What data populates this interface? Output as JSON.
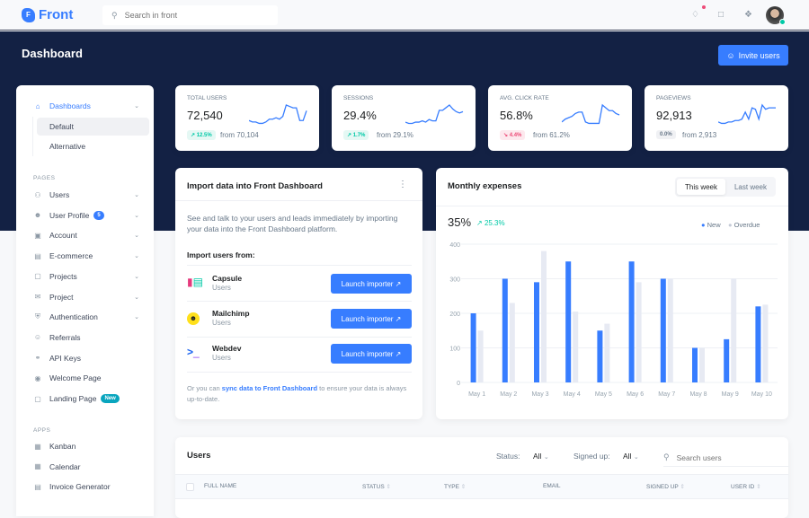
{
  "app": {
    "logo": "Front",
    "search_placeholder": "Search in front"
  },
  "header": {
    "title": "Dashboard",
    "invite_label": "Invite users"
  },
  "colors": {
    "accent": "#377dff",
    "navy": "#132144",
    "success": "#00c9a7",
    "danger": "#ed4c78",
    "overdue": "#e7eaf3"
  },
  "sidebar": {
    "dashboards": "Dashboards",
    "sub": [
      "Default",
      "Alternative"
    ],
    "pages_label": "PAGES",
    "pages": [
      {
        "label": "Users",
        "icon": "users-icon",
        "chevron": true
      },
      {
        "label": "User Profile",
        "icon": "user-icon",
        "chevron": true,
        "badge": "5"
      },
      {
        "label": "Account",
        "icon": "account-icon",
        "chevron": true
      },
      {
        "label": "E-commerce",
        "icon": "basket-icon",
        "chevron": true
      },
      {
        "label": "Projects",
        "icon": "sticky-note-icon",
        "chevron": true
      },
      {
        "label": "Project",
        "icon": "briefcase-icon",
        "chevron": true
      },
      {
        "label": "Authentication",
        "icon": "shield-icon",
        "chevron": true
      },
      {
        "label": "Referrals",
        "icon": "person-plus-icon",
        "chevron": false
      },
      {
        "label": "API Keys",
        "icon": "key-icon",
        "chevron": false
      },
      {
        "label": "Welcome Page",
        "icon": "eye-icon",
        "chevron": false
      },
      {
        "label": "Landing Page",
        "icon": "box-icon",
        "chevron": false,
        "badge": "New"
      }
    ],
    "apps_label": "APPS",
    "apps": [
      {
        "label": "Kanban",
        "icon": "kanban-icon"
      },
      {
        "label": "Calendar",
        "icon": "calendar-icon"
      },
      {
        "label": "Invoice Generator",
        "icon": "invoice-icon"
      }
    ]
  },
  "stats": [
    {
      "label": "TOTAL USERS",
      "value": "72,540",
      "change": "12.5%",
      "trend": "up",
      "from": "from 70,104",
      "spark": [
        3,
        2,
        2,
        1,
        1,
        2,
        4,
        4,
        5,
        4,
        6,
        14,
        13,
        12,
        12,
        3,
        3,
        10
      ]
    },
    {
      "label": "SESSIONS",
      "value": "29.4%",
      "change": "1.7%",
      "trend": "up",
      "from": "from 29.1%",
      "spark": [
        2,
        1,
        1,
        2,
        2,
        3,
        2,
        4,
        3,
        3,
        11,
        11,
        13,
        15,
        12,
        10,
        9,
        10
      ]
    },
    {
      "label": "AVG. CLICK RATE",
      "value": "56.8%",
      "change": "4.4%",
      "trend": "down",
      "from": "from 61.2%",
      "spark": [
        2,
        4,
        5,
        6,
        8,
        9,
        9,
        2,
        1,
        1,
        1,
        1,
        14,
        12,
        10,
        10,
        8,
        7
      ]
    },
    {
      "label": "PAGEVIEWS",
      "value": "92,913",
      "change": "0.0%",
      "trend": "neutral",
      "from": "from 2,913",
      "spark": [
        2,
        1,
        1,
        2,
        2,
        3,
        3,
        4,
        9,
        4,
        12,
        11,
        4,
        14,
        11,
        12,
        12,
        12
      ]
    }
  ],
  "import": {
    "title": "Import data into Front Dashboard",
    "desc": "See and talk to your users and leads immediately by importing your data into the Front Dashboard platform.",
    "subtitle": "Import users from:",
    "items": [
      {
        "name": "Capsule",
        "sub": "Users",
        "button": "Launch importer"
      },
      {
        "name": "Mailchimp",
        "sub": "Users",
        "button": "Launch importer"
      },
      {
        "name": "Webdev",
        "sub": "Users",
        "button": "Launch importer"
      }
    ],
    "footer_pre": "Or you can ",
    "footer_link": "sync data to Front Dashboard",
    "footer_post": " to ensure your data is always up-to-date."
  },
  "expenses": {
    "title": "Monthly expenses",
    "tabs": [
      "This week",
      "Last week"
    ],
    "big": "35%",
    "change": "25.3%"
  },
  "chart_data": {
    "type": "bar",
    "categories": [
      "May 1",
      "May 2",
      "May 3",
      "May 4",
      "May 5",
      "May 6",
      "May 7",
      "May 8",
      "May 9",
      "May 10"
    ],
    "series": [
      {
        "name": "New",
        "color": "#377dff",
        "values": [
          200,
          300,
          290,
          350,
          150,
          350,
          300,
          100,
          125,
          220
        ]
      },
      {
        "name": "Overdue",
        "color": "#e7eaf3",
        "values": [
          150,
          230,
          380,
          205,
          170,
          290,
          300,
          100,
          300,
          225
        ]
      }
    ],
    "yticks": [
      0,
      100,
      200,
      300,
      400
    ],
    "ylim": [
      0,
      400
    ],
    "grid": true,
    "legend": "top-right"
  },
  "users": {
    "title": "Users",
    "status_label": "Status:",
    "status_value": "All",
    "signed_label": "Signed up:",
    "signed_value": "All",
    "search_placeholder": "Search users",
    "columns": [
      "FULL NAME",
      "STATUS",
      "TYPE",
      "EMAIL",
      "SIGNED UP",
      "USER ID"
    ]
  }
}
